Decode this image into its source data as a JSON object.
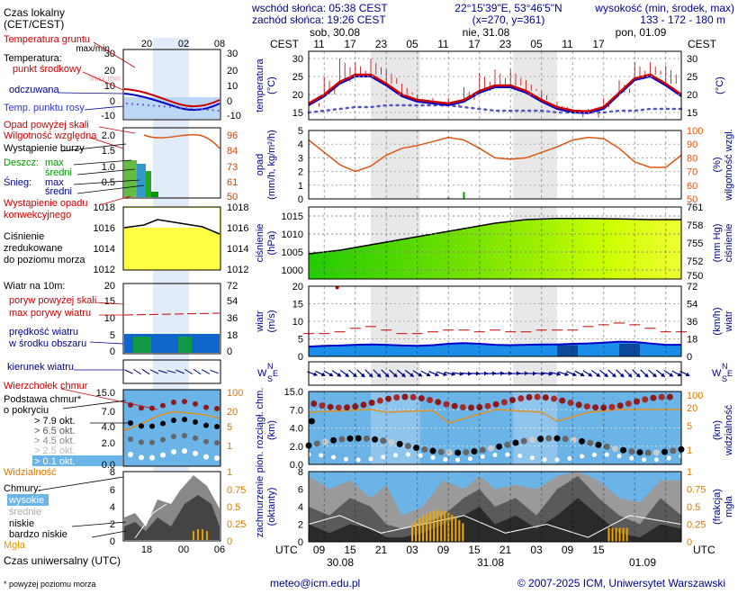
{
  "header": {
    "sunrise": "wschód słońca: 05:38 CEST",
    "sunset": "zachód słońca: 19:26 CEST",
    "coords": "22°15'39\"E, 53°46'5\"N",
    "grid": "(x=270, y=361)",
    "height_title": "wysokość (min, środek, max)",
    "height_values": "133 - 172 - 180 m"
  },
  "legend": {
    "local_time": "Czas lokalny",
    "local_time_zone": "(CET/CEST)",
    "ground_temp": "Temperatura gruntu",
    "ground_temp_maxmin": "max/min",
    "temperature": "Temperatura:",
    "mid_point": "punkt środkowy",
    "max_min": "max min",
    "felt": "odczuwana",
    "dew_point": "Temp. punktu rosy",
    "precip_above": "Opad powyżej skali",
    "humidity": "Wilgotność względna",
    "storm": "Wystąpienie burzy",
    "rain": "Deszcz:",
    "rain_max": "max",
    "rain_mean": "średni",
    "snow": "Śnieg:",
    "snow_max": "max",
    "snow_mean": "średni",
    "conv1": "Wystąpienie opadu",
    "conv2": "konwekcyjnego",
    "pressure1": "Ciśnienie",
    "pressure2": "zredukowane",
    "pressure3": "do poziomu morza",
    "wind_title": "Wiatr na 10m:",
    "gust_above": "poryw powyżej skali",
    "max_gust": "max porywy wiatru",
    "wind_speed1": "prędkość wiatru",
    "wind_speed2": "w środku obszaru",
    "wind_dir": "kierunek wiatru",
    "cloud_top": "Wierzchołek chmur",
    "cloud_base1": "Podstawa chmur*",
    "cloud_base2": "o pokryciu",
    "okt": [
      "> 7.9 okt.",
      "> 6.5 okt.",
      "> 4.5 okt.",
      "> 2.5 okt.",
      "> 0.1 okt."
    ],
    "visibility": "Widzialność",
    "clouds": "Chmury:",
    "cl_high": "wysokie",
    "cl_mid": "średnie",
    "cl_low": "niskie",
    "cl_vlow": "bardzo niskie",
    "fog": "Mgła",
    "utc_label": "Czas uniwersalny (UTC)",
    "footnote": "* powyżej poziomu morza"
  },
  "legend_axes": {
    "local_ticks": [
      "20",
      "02",
      "08"
    ],
    "utc_ticks": [
      "18",
      "00",
      "06"
    ],
    "temp_ticks": [
      "30",
      "20",
      "10",
      "0",
      "-10"
    ],
    "precip_ticks": [
      "2.0",
      "1.5",
      "1.0",
      "0.5"
    ],
    "hum_ticks": [
      "96",
      "84",
      "73",
      "61",
      "50"
    ],
    "press_ticks": [
      "1018",
      "1016",
      "1014",
      "1012"
    ],
    "wind_ticks": [
      "20",
      "15",
      "10",
      "5",
      "0"
    ],
    "wind_kmh": [
      "72",
      "54",
      "36",
      "18",
      "0"
    ],
    "cb_ticks": [
      "15.0",
      "7.0",
      "4.0",
      "2.0",
      "0.0"
    ],
    "vis_ticks": [
      "100",
      "20",
      "5",
      "1"
    ],
    "cl_ticks": [
      "8",
      "6",
      "4",
      "2",
      "0"
    ],
    "fog_ticks": [
      "1",
      "0.75",
      "0.5",
      "0.25",
      "0"
    ]
  },
  "top_axis": {
    "zone_left": "CEST",
    "zone_right": "CEST",
    "dates": [
      "sob, 30.08",
      "nie, 31.08",
      "pon, 01.09"
    ],
    "hours": [
      "11",
      "17",
      "23",
      "05",
      "11",
      "17",
      "23",
      "05",
      "11",
      "17"
    ]
  },
  "bottom_axis": {
    "zone_left": "UTC",
    "zone_right": "UTC",
    "hours": [
      "09",
      "15",
      "21",
      "03",
      "09",
      "15",
      "21",
      "03",
      "09",
      "15"
    ],
    "dates": [
      "30.08",
      "31.08",
      "01.09"
    ]
  },
  "panel_labels": {
    "temperature": [
      "temperatura",
      "(°C)"
    ],
    "temperature_right": "(°C)",
    "precip": [
      "opad",
      "(mm/h, kg/m²/h)"
    ],
    "humidity": [
      "wilgotność wzgl.",
      "(%)"
    ],
    "pressure": [
      "ciśnienie",
      "(hPa)"
    ],
    "pressure_right": [
      "ciśnienie",
      "(mm Hg)"
    ],
    "wind": [
      "wiatr",
      "(m/s)"
    ],
    "wind_right": [
      "wiatr",
      "(km/h)"
    ],
    "wind_dir": [
      "N",
      "W",
      "E",
      "S"
    ],
    "cloud": [
      "pion. rozciągł. chm.",
      "(km)"
    ],
    "cloud_right": [
      "widzialność",
      "(km)"
    ],
    "cover": [
      "zachmurzenie",
      "(oktanty)"
    ],
    "cover_right": [
      "mgła",
      "(frakcja)"
    ]
  },
  "footer": {
    "email": "meteo@icm.edu.pl",
    "copyright": "© 2007-2025 ICM, Uniwersytet Warszawski"
  },
  "colors": {
    "title_blue": "#00008b",
    "temp_red": "#cc0000",
    "dew_blue": "#3333cc",
    "humidity_orange": "#dd5511",
    "pressure_green": "#00cc00",
    "pressure_yellow": "#ffff00",
    "wind_blue": "#0000cc",
    "sky_blue": "#6bb4e8",
    "night_gray": "#e6e6e6"
  },
  "chart_data": [
    {
      "type": "line",
      "name": "temperature",
      "ylabel": "temperatura (°C)",
      "ylim": [
        13,
        32
      ],
      "y_ticks": [
        15,
        20,
        25,
        30
      ],
      "x_hours_from_start": [
        0,
        3,
        6,
        9,
        12,
        15,
        18,
        21,
        24,
        27,
        30,
        33,
        36,
        39,
        42,
        45,
        48,
        51,
        54,
        57,
        60,
        63,
        66,
        69,
        72
      ],
      "temperature": [
        17.5,
        20,
        23.5,
        25.5,
        25.5,
        23,
        20,
        18.5,
        18,
        17.5,
        18.5,
        21,
        22.5,
        22.5,
        21,
        18.5,
        16.5,
        15.5,
        15.3,
        16.5,
        20.5,
        24.5,
        25.5,
        23,
        20
      ],
      "max_temperature": [
        19,
        25,
        30,
        29,
        30,
        27,
        23,
        20,
        19,
        19,
        22,
        26,
        27,
        27,
        24,
        21,
        18,
        16,
        16,
        19,
        24,
        29,
        29,
        28,
        22
      ],
      "dew_point": [
        15,
        15.5,
        16,
        16.5,
        16.5,
        17,
        17,
        17,
        17,
        17,
        16.5,
        16,
        15.5,
        15.5,
        15.5,
        15.5,
        15,
        15,
        15,
        15,
        15.5,
        15.5,
        16,
        16,
        16
      ]
    },
    {
      "type": "line",
      "name": "humidity_precip",
      "ylabel": "opad (mm/h, kg/m²/h)",
      "ylim": [
        0,
        5
      ],
      "y2label": "wilgotność wzgl. (%)",
      "y2lim": [
        50,
        100
      ],
      "y2_ticks": [
        50,
        60,
        70,
        80,
        90,
        100
      ],
      "x_hours_from_start": [
        0,
        3,
        6,
        9,
        12,
        15,
        18,
        21,
        24,
        27,
        30,
        33,
        36,
        39,
        42,
        45,
        48,
        51,
        54,
        57,
        60,
        63,
        66,
        69,
        72
      ],
      "humidity": [
        93,
        84,
        75,
        70,
        74,
        82,
        87,
        89,
        92,
        95,
        93,
        87,
        80,
        79,
        80,
        84,
        88,
        93,
        95,
        94,
        87,
        77,
        73,
        73,
        82
      ],
      "precip": [
        0,
        0,
        0,
        0,
        0,
        0,
        0,
        0,
        0,
        0.1,
        0.5,
        0,
        0,
        0,
        0,
        0,
        0,
        0,
        0,
        0,
        0,
        0,
        0,
        0,
        0
      ]
    },
    {
      "type": "area",
      "name": "pressure",
      "ylabel": "ciśnienie (hPa)",
      "ylim": [
        997.5,
        1017.5
      ],
      "y_ticks": [
        1000,
        1005,
        1010,
        1015
      ],
      "y2label": "ciśnienie (mm Hg)",
      "y2_ticks": [
        750,
        752,
        755,
        758,
        761
      ],
      "x_hours_from_start": [
        0,
        6,
        12,
        18,
        24,
        30,
        36,
        42,
        48,
        54,
        60,
        66,
        72
      ],
      "pressure": [
        1004.5,
        1005.5,
        1007,
        1008.5,
        1010,
        1011.5,
        1013,
        1014,
        1014.3,
        1014.3,
        1014.2,
        1014,
        1014
      ]
    },
    {
      "type": "line",
      "name": "wind",
      "ylabel": "wiatr (m/s)",
      "ylim": [
        0,
        20
      ],
      "y_ticks": [
        0,
        5,
        10,
        15,
        20
      ],
      "y2label": "wiatr (km/h)",
      "y2_ticks": [
        0,
        18,
        36,
        54,
        72
      ],
      "x_hours_from_start": [
        0,
        3,
        6,
        9,
        12,
        15,
        18,
        21,
        24,
        27,
        30,
        33,
        36,
        39,
        42,
        45,
        48,
        51,
        54,
        57,
        60,
        63,
        66,
        69,
        72
      ],
      "wind_speed": [
        2.8,
        3,
        3.1,
        3.3,
        3.4,
        3.3,
        3.1,
        3,
        3.2,
        3.6,
        3.8,
        3.6,
        3.3,
        3.2,
        3.3,
        3.4,
        3.4,
        3.6,
        3.7,
        3.9,
        4.2,
        4.1,
        3.7,
        3.3,
        3.3
      ],
      "max_gust": [
        6.5,
        6.5,
        7,
        8,
        8.5,
        7.5,
        6.5,
        6.5,
        7,
        7.5,
        7.5,
        7,
        7.5,
        7,
        7,
        7.5,
        7.5,
        7.5,
        8.5,
        9,
        9.5,
        9,
        8,
        7,
        7
      ]
    },
    {
      "type": "scatter",
      "name": "cloud_base_visibility",
      "ylabel": "pion. rozciągł. chm. (km)",
      "y_ticks": [
        0,
        2,
        4,
        7,
        15
      ],
      "y2label": "widzialność (km)",
      "y2_ticks": [
        1,
        5,
        20,
        100
      ]
    },
    {
      "type": "area",
      "name": "cloud_cover",
      "ylabel": "zachmurzenie (oktanty)",
      "ylim": [
        0,
        8
      ],
      "y_ticks": [
        0,
        2,
        4,
        6,
        8
      ],
      "y2label": "mgła (frakcja)",
      "y2_ticks": [
        0,
        0.25,
        0.5,
        0.75,
        1
      ]
    }
  ]
}
